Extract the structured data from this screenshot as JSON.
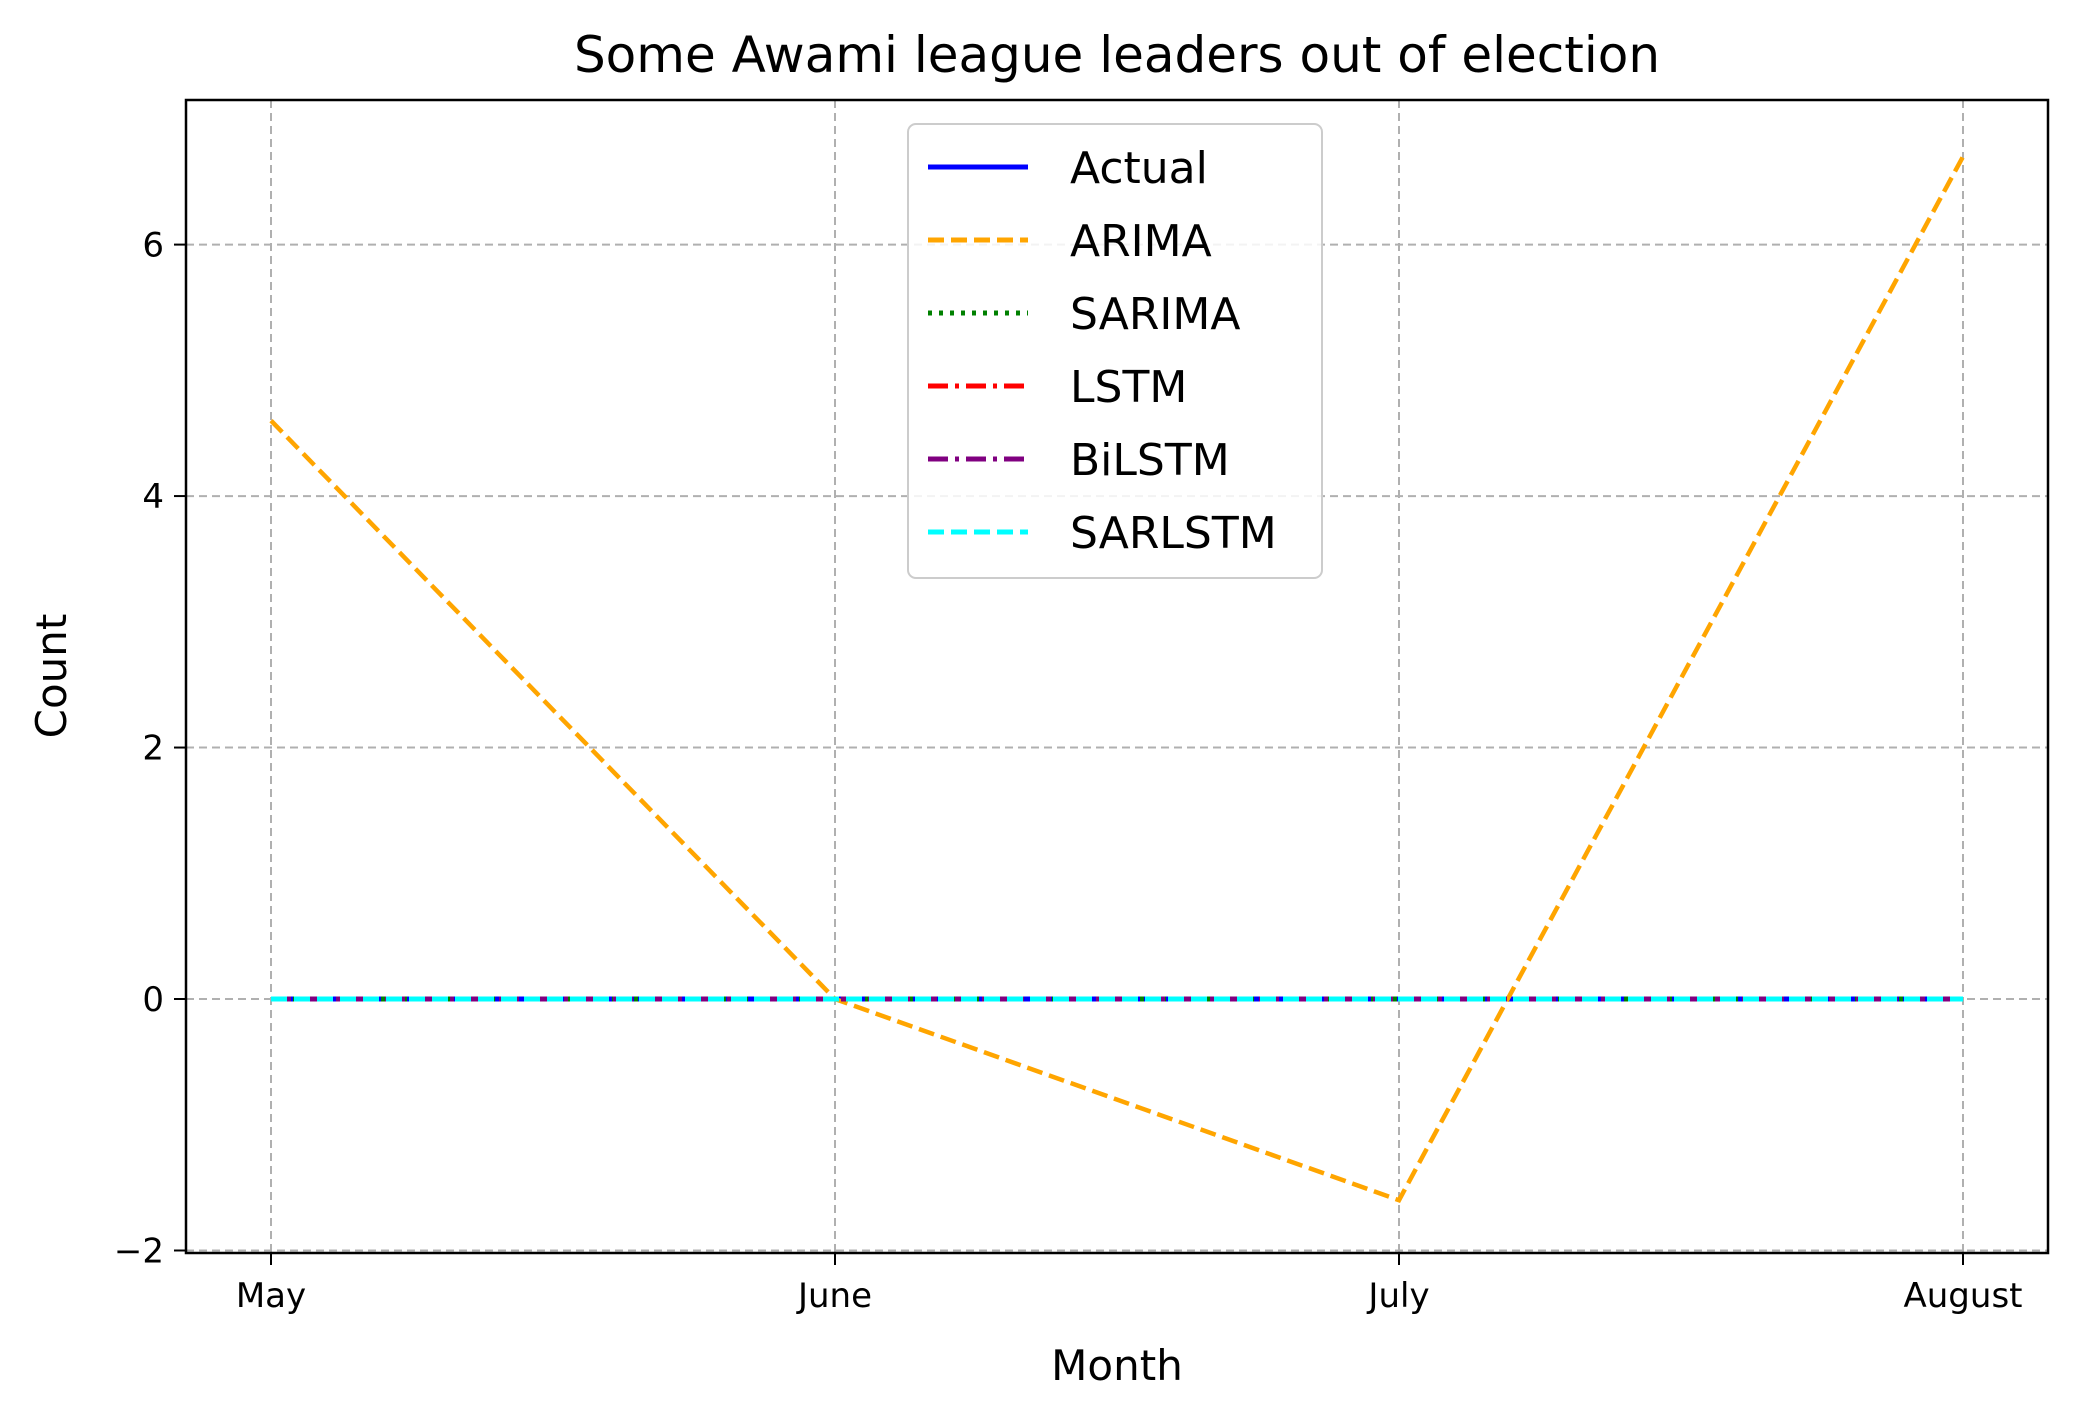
{
  "chart_data": {
    "type": "line",
    "title": "Some Awami league leaders out of election",
    "xlabel": "Month",
    "ylabel": "Count",
    "categories": [
      "May",
      "June",
      "July",
      "August"
    ],
    "yticks": [
      -2,
      0,
      2,
      4,
      6
    ],
    "ytick_labels": [
      "−2",
      "0",
      "2",
      "4",
      "6"
    ],
    "ylim": [
      -2.02,
      7.15
    ],
    "grid": true,
    "legend_position": "top-center",
    "series": [
      {
        "name": "Actual",
        "values": [
          0,
          0,
          0,
          0
        ],
        "color": "#0000ff",
        "dash": "solid"
      },
      {
        "name": "ARIMA",
        "values": [
          4.6,
          0.0,
          -1.6,
          6.7
        ],
        "color": "#ffa500",
        "dash": "dashed"
      },
      {
        "name": "SARIMA",
        "values": [
          0,
          0,
          0,
          0
        ],
        "color": "#008000",
        "dash": "dotted"
      },
      {
        "name": "LSTM",
        "values": [
          0,
          0,
          0,
          0
        ],
        "color": "#ff0000",
        "dash": "dashdot"
      },
      {
        "name": "BiLSTM",
        "values": [
          0,
          0,
          0,
          0
        ],
        "color": "#800080",
        "dash": "dashdot"
      },
      {
        "name": "SARLSTM",
        "values": [
          0,
          0,
          0,
          0
        ],
        "color": "#00ffff",
        "dash": "dashed"
      }
    ]
  }
}
